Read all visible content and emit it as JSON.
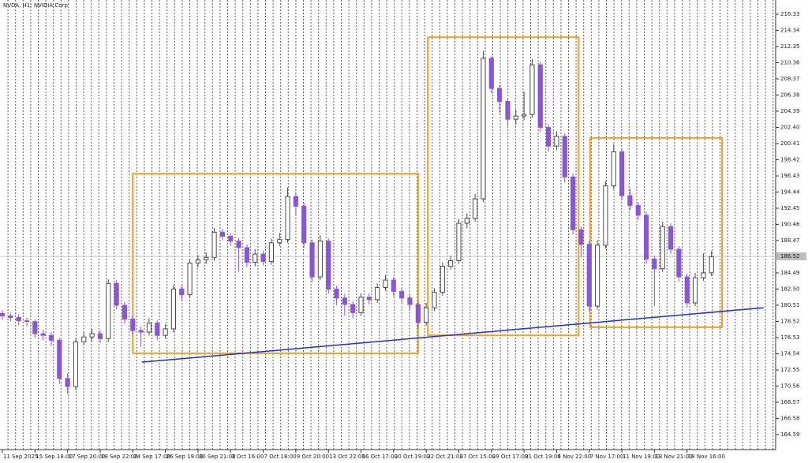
{
  "chart_data": {
    "type": "candlestick",
    "title": "NVDA, H1: NVIDIA Corp",
    "categories": [
      "11 Sep 2025",
      null,
      null,
      null,
      "15 Sep 18:00",
      null,
      null,
      null,
      "17 Sep 20:00",
      null,
      null,
      null,
      "19 Sep 22:00",
      null,
      null,
      null,
      "24 Sep 17:00",
      null,
      null,
      null,
      "26 Sep 19:00",
      null,
      null,
      null,
      "30 Sep 21:00",
      null,
      null,
      null,
      "3 Oct 16:00",
      null,
      null,
      null,
      "7 Oct 18:00",
      null,
      null,
      null,
      "9 Oct 20:00",
      null,
      null,
      null,
      "13 Oct 22:00",
      null,
      null,
      null,
      "16 Oct 17:00",
      null,
      null,
      null,
      "20 Oct 19:00",
      null,
      null,
      null,
      "22 Oct 21:00",
      null,
      null,
      null,
      "27 Oct 15:00",
      null,
      null,
      null,
      "29 Oct 17:00",
      null,
      null,
      null,
      "31 Oct 19:00",
      null,
      null,
      null,
      "4 Nov 22:00",
      null,
      null,
      null,
      "7 Nov 17:00",
      null,
      null,
      null,
      "11 Nov 19:00",
      null,
      null,
      null,
      "13 Nov 21:00",
      null,
      null,
      null,
      "18 Nov 16:00",
      null,
      null,
      null
    ],
    "open": [
      179.5,
      179.2,
      179.0,
      178.6,
      178.5,
      177.0,
      176.8,
      176.2,
      171.5,
      170.5,
      176.0,
      176.6,
      177.0,
      176.4,
      183.2,
      180.5,
      178.8,
      177.4,
      177.2,
      178.3,
      176.8,
      177.6,
      182.5,
      181.8,
      185.7,
      186.1,
      186.4,
      189.5,
      189.0,
      188.4,
      187.6,
      185.8,
      186.8,
      185.9,
      188.2,
      188.6,
      193.9,
      192.7,
      188.2,
      184.0,
      188.4,
      182.5,
      181.4,
      180.6,
      179.6,
      181.5,
      181.2,
      182.7,
      183.6,
      182.2,
      181.4,
      180.6,
      178.4,
      180.2,
      182.1,
      185.3,
      186.0,
      190.6,
      191.2,
      193.6,
      210.9,
      207.2,
      205.6,
      203.4,
      203.8,
      204.0,
      210.1,
      202.4,
      200.1,
      201.3,
      196.3,
      189.8,
      188.0,
      180.4,
      187.9,
      195.2,
      199.4,
      194.0,
      192.8,
      191.6,
      186.2,
      185.0,
      190.2,
      187.4,
      184.0,
      180.8,
      183.9,
      184.5
    ],
    "high": [
      179.9,
      179.6,
      179.4,
      179.0,
      178.8,
      177.5,
      177.2,
      176.5,
      172.1,
      176.4,
      177.2,
      177.6,
      177.4,
      183.7,
      183.6,
      180.9,
      179.2,
      177.9,
      178.9,
      178.7,
      178.2,
      183.0,
      182.9,
      186.2,
      186.7,
      187.0,
      190.0,
      189.9,
      189.4,
      188.8,
      188.0,
      187.4,
      187.2,
      188.7,
      189.4,
      195.0,
      194.3,
      193.1,
      188.6,
      189.1,
      188.8,
      182.9,
      181.9,
      181.0,
      182.0,
      182.0,
      183.2,
      184.2,
      184.0,
      182.6,
      181.8,
      181.0,
      180.8,
      182.6,
      185.8,
      186.6,
      191.1,
      191.8,
      194.2,
      211.8,
      211.2,
      207.6,
      206.0,
      204.6,
      206.8,
      210.8,
      210.5,
      202.8,
      201.9,
      201.7,
      196.7,
      190.2,
      188.4,
      188.5,
      195.8,
      200.3,
      199.8,
      194.9,
      193.2,
      192.0,
      186.6,
      190.8,
      190.6,
      187.8,
      184.4,
      184.5,
      186.9,
      187.2
    ],
    "low": [
      178.7,
      178.5,
      178.1,
      177.9,
      176.5,
      176.2,
      175.5,
      170.8,
      169.6,
      170.1,
      175.6,
      176.1,
      175.9,
      176.0,
      180.0,
      178.2,
      176.9,
      175.4,
      176.8,
      176.2,
      176.4,
      177.2,
      181.1,
      181.4,
      185.2,
      185.6,
      186.0,
      188.5,
      187.8,
      184.6,
      185.2,
      185.3,
      185.4,
      185.5,
      187.8,
      188.2,
      191.6,
      187.6,
      183.4,
      183.6,
      181.9,
      180.5,
      179.2,
      178.9,
      179.2,
      180.6,
      180.8,
      182.3,
      181.6,
      180.8,
      180.0,
      177.7,
      178.0,
      179.8,
      181.7,
      184.9,
      185.6,
      190.0,
      190.8,
      193.2,
      206.6,
      204.1,
      202.6,
      202.8,
      203.3,
      203.6,
      201.8,
      199.4,
      199.6,
      195.6,
      189.2,
      186.4,
      179.8,
      180.0,
      187.5,
      194.8,
      193.4,
      192.2,
      191.0,
      185.6,
      180.4,
      184.6,
      186.8,
      183.4,
      180.2,
      180.4,
      183.5,
      184.1
    ],
    "close": [
      179.2,
      179.0,
      178.6,
      178.5,
      177.0,
      176.8,
      176.2,
      171.5,
      170.5,
      176.0,
      176.6,
      177.0,
      176.4,
      183.2,
      180.5,
      178.8,
      177.4,
      177.2,
      178.3,
      176.8,
      177.6,
      182.5,
      181.8,
      185.7,
      186.1,
      186.4,
      189.5,
      189.0,
      188.4,
      187.6,
      185.8,
      186.8,
      185.9,
      188.2,
      188.6,
      193.9,
      192.7,
      188.2,
      184.0,
      188.4,
      182.5,
      181.4,
      180.6,
      179.6,
      181.5,
      181.2,
      182.7,
      183.6,
      182.2,
      181.4,
      180.6,
      178.4,
      180.2,
      182.1,
      185.3,
      186.0,
      190.6,
      191.2,
      193.6,
      210.9,
      207.2,
      205.6,
      203.4,
      203.8,
      204.0,
      210.1,
      202.4,
      200.1,
      201.3,
      196.3,
      189.8,
      188.0,
      180.4,
      187.9,
      195.2,
      199.4,
      194.0,
      192.8,
      191.6,
      186.2,
      185.0,
      190.2,
      187.4,
      184.0,
      180.8,
      183.9,
      184.5,
      186.5
    ],
    "up_color": "#4a4a4a",
    "down_color": "#8a55d8",
    "xlim": [
      -0.29,
      94.87
    ],
    "ylim": [
      162.74,
      218.08
    ],
    "yticks": [
      216.33,
      214.34,
      212.35,
      210.36,
      208.37,
      206.38,
      204.39,
      {
        "value": 202.4,
        "label": "202.40"
      },
      200.41,
      198.42,
      196.43,
      194.44,
      192.45,
      190.46,
      188.47,
      184.49,
      {
        "value": 182.5,
        "label": "182.50"
      },
      180.51,
      178.52,
      176.53,
      174.54,
      172.55,
      170.56,
      168.57,
      166.58,
      164.59
    ],
    "last_price": {
      "value": 186.52,
      "label": "186.52"
    },
    "trendline": {
      "x": [
        17.1,
        93.4
      ],
      "y": [
        173.5,
        180.2
      ],
      "color": "#1f2fd0"
    },
    "boxes": [
      {
        "x": [
          16.0,
          51.0
        ],
        "y": [
          196.7,
          174.6
        ]
      },
      {
        "x": [
          52.2,
          70.7
        ],
        "y": [
          213.5,
          176.8
        ]
      },
      {
        "x": [
          72.1,
          88.3
        ],
        "y": [
          201.1,
          177.8
        ]
      }
    ],
    "box_color": "#f5a01a"
  }
}
